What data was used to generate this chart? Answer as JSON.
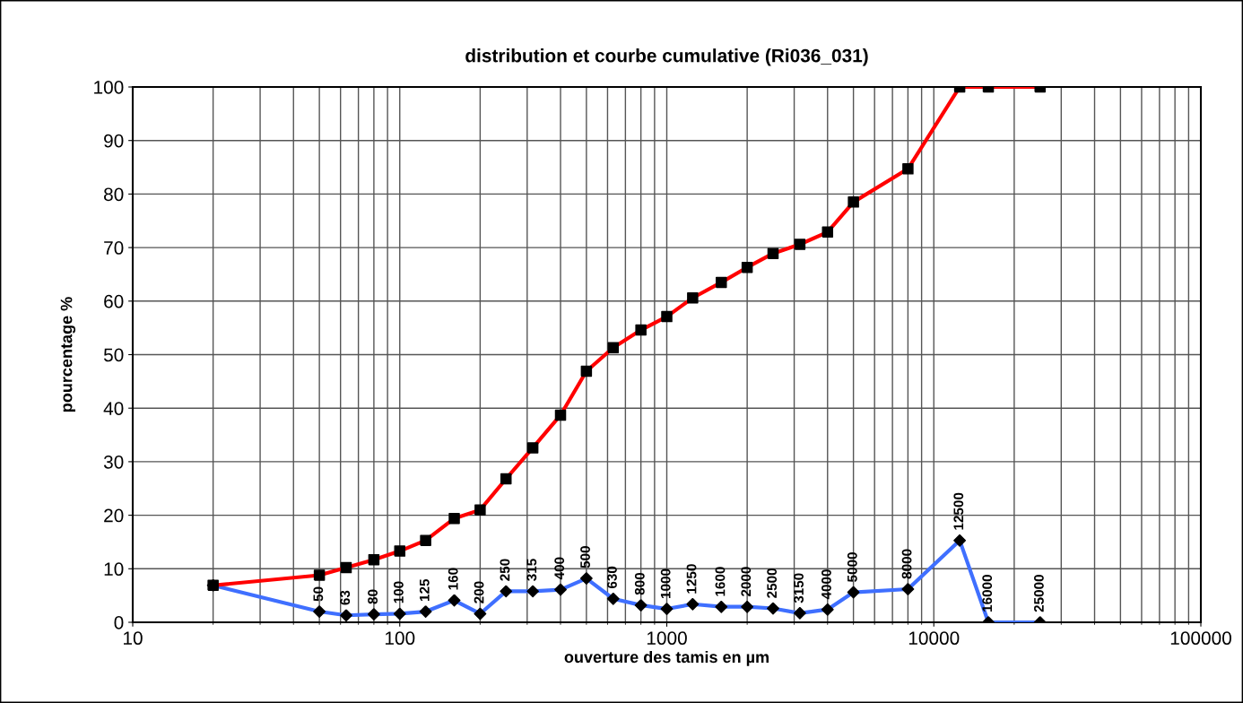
{
  "chart_data": {
    "type": "line",
    "title": "distribution et courbe cumulative (Ri036_031)",
    "xlabel": "ouverture des tamis en µm",
    "ylabel": "pourcentage %",
    "log": "x",
    "grid": true,
    "xlim": [
      10,
      100000
    ],
    "xticks": [
      10,
      100,
      1000,
      10000,
      100000
    ],
    "ylim": [
      0,
      100
    ],
    "yticks": [
      0,
      10,
      20,
      30,
      40,
      50,
      60,
      70,
      80,
      90,
      100
    ],
    "series": [
      {
        "color": "#ff0000",
        "marker": "square",
        "x": [
          20,
          50,
          63,
          80,
          100,
          125,
          160,
          200,
          250,
          315,
          400,
          500,
          630,
          800,
          1000,
          1250,
          1600,
          2000,
          2500,
          3150,
          4000,
          5000,
          8000,
          12500,
          16000,
          25000
        ],
        "values": [
          6.9,
          8.8,
          10.2,
          11.7,
          13.3,
          15.3,
          19.4,
          21.0,
          26.8,
          32.6,
          38.7,
          46.9,
          51.3,
          54.6,
          57.1,
          60.6,
          63.5,
          66.3,
          68.9,
          70.6,
          72.9,
          78.5,
          84.7,
          100,
          100,
          100
        ]
      },
      {
        "color": "#3f6fff",
        "marker": "diamond",
        "x": [
          20,
          50,
          63,
          80,
          100,
          125,
          160,
          200,
          250,
          315,
          400,
          500,
          630,
          800,
          1000,
          1250,
          1600,
          2000,
          2500,
          3150,
          4000,
          5000,
          8000,
          12500,
          16000,
          25000
        ],
        "values": [
          6.9,
          2.0,
          1.3,
          1.5,
          1.6,
          2.0,
          4.1,
          1.6,
          5.8,
          5.8,
          6.1,
          8.2,
          4.4,
          3.2,
          2.5,
          3.4,
          2.9,
          2.9,
          2.6,
          1.7,
          2.4,
          5.6,
          6.2,
          15.3,
          0,
          0
        ]
      }
    ],
    "annotations": [
      {
        "text": "50",
        "x": 50,
        "y": 2.0
      },
      {
        "text": "63",
        "x": 63,
        "y": 1.3
      },
      {
        "text": "80",
        "x": 80,
        "y": 1.5
      },
      {
        "text": "100",
        "x": 100,
        "y": 1.6
      },
      {
        "text": "125",
        "x": 125,
        "y": 2.0
      },
      {
        "text": "160",
        "x": 160,
        "y": 4.1
      },
      {
        "text": "200",
        "x": 200,
        "y": 1.6
      },
      {
        "text": "250",
        "x": 250,
        "y": 5.8
      },
      {
        "text": "315",
        "x": 315,
        "y": 5.8
      },
      {
        "text": "400",
        "x": 400,
        "y": 6.1
      },
      {
        "text": "500",
        "x": 500,
        "y": 8.2
      },
      {
        "text": "630",
        "x": 630,
        "y": 4.4
      },
      {
        "text": "800",
        "x": 800,
        "y": 3.2
      },
      {
        "text": "1000",
        "x": 1000,
        "y": 2.5
      },
      {
        "text": "1250",
        "x": 1250,
        "y": 3.4
      },
      {
        "text": "1600",
        "x": 1600,
        "y": 2.9
      },
      {
        "text": "2000",
        "x": 2000,
        "y": 2.9
      },
      {
        "text": "2500",
        "x": 2500,
        "y": 2.6
      },
      {
        "text": "3150",
        "x": 3150,
        "y": 1.7
      },
      {
        "text": "4000",
        "x": 4000,
        "y": 2.4
      },
      {
        "text": "5000",
        "x": 5000,
        "y": 5.6
      },
      {
        "text": "8000",
        "x": 8000,
        "y": 6.2
      },
      {
        "text": "12500",
        "x": 12500,
        "y": 15.3
      },
      {
        "text": "16000",
        "x": 16000,
        "y": 0
      },
      {
        "text": "25000",
        "x": 25000,
        "y": 0
      }
    ]
  }
}
